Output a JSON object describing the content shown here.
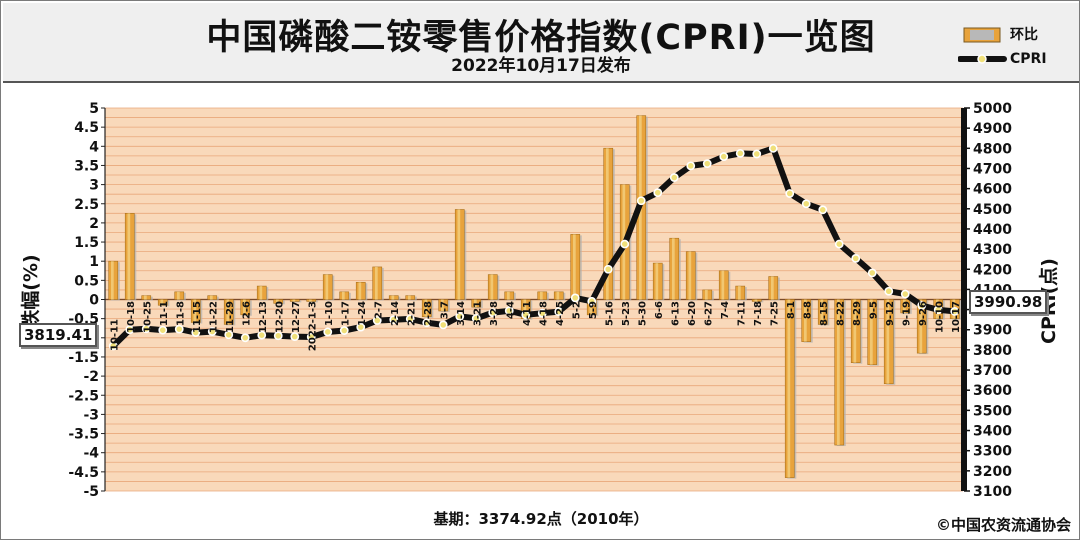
{
  "header": {
    "title": "中国磷酸二铵零售价格指数(CPRI)一览图",
    "subtitle": "2022年10月17日发布"
  },
  "legend": {
    "bar_label": "环比",
    "line_label": "CPRI"
  },
  "footer": {
    "base": "基期：3374.92点（2010年）",
    "copyright": "©中国农资流通协会"
  },
  "callouts": {
    "start_value": "3819.41",
    "end_value": "3990.98"
  },
  "colors": {
    "bar_fill": "#e8a33c",
    "bar_highlight": "#f3d080",
    "line": "#111111",
    "marker": "#f0e07a",
    "plot_bg": "#f9d9ba",
    "grid": "#e9a77a"
  },
  "chart_data": {
    "type": "bar",
    "categories": [
      "10-11",
      "10-18",
      "10-25",
      "11-1",
      "11-8",
      "11-15",
      "11-22",
      "11-29",
      "12-6",
      "12-13",
      "12-20",
      "12-27",
      "2022-1-3",
      "1-10",
      "1-17",
      "1-24",
      "2-7",
      "2-14",
      "2-21",
      "2-28",
      "3-7",
      "3-14",
      "3-21",
      "3-28",
      "4-4",
      "4-11",
      "4-18",
      "4-25",
      "5-2",
      "5-9",
      "5-16",
      "5-23",
      "5-30",
      "6-6",
      "6-13",
      "6-20",
      "6-27",
      "7-4",
      "7-11",
      "7-18",
      "7-25",
      "8-1",
      "8-8",
      "8-15",
      "8-22",
      "8-29",
      "9-5",
      "9-12",
      "9-19",
      "9-26",
      "10-10",
      "10-17"
    ],
    "series": [
      {
        "name": "环比",
        "axis": "left",
        "values": [
          1.0,
          2.25,
          0.1,
          -0.15,
          0.2,
          -0.6,
          0.1,
          -0.65,
          -0.4,
          0.35,
          -0.1,
          -0.05,
          -0.05,
          0.65,
          0.2,
          0.45,
          0.85,
          0.1,
          0.1,
          -0.45,
          -0.3,
          2.35,
          -0.2,
          0.65,
          0.2,
          -0.5,
          0.2,
          0.2,
          1.7,
          -0.4,
          3.95,
          3.0,
          4.8,
          0.95,
          1.6,
          1.25,
          0.25,
          0.75,
          0.35,
          -0.05,
          0.6,
          -4.65,
          -1.1,
          -0.65,
          -3.8,
          -1.65,
          -1.7,
          -2.2,
          -0.35,
          -1.4,
          -0.5,
          -0.5
        ]
      },
      {
        "name": "CPRI",
        "axis": "right",
        "values": [
          3819.41,
          3900,
          3905,
          3898,
          3903,
          3886,
          3891,
          3875,
          3860,
          3873,
          3870,
          3866,
          3864,
          3889,
          3896,
          3913,
          3946,
          3950,
          3954,
          3935,
          3924,
          3966,
          3956,
          3985,
          3994,
          3974,
          3982,
          3990,
          4058,
          4041,
          4200,
          4325,
          4540,
          4580,
          4655,
          4713,
          4724,
          4759,
          4775,
          4772,
          4800,
          4576,
          4525,
          4495,
          4325,
          4254,
          4182,
          4091,
          4077,
          4020,
          3999,
          3990.98
        ]
      }
    ],
    "ylim_left": [
      -5,
      5
    ],
    "yticks_left": [
      5,
      4.5,
      4,
      3.5,
      3,
      2.5,
      2,
      1.5,
      1,
      0.5,
      0,
      -0.5,
      -1,
      -1.5,
      -2,
      -2.5,
      -3,
      -3.5,
      -4,
      -4.5,
      -5
    ],
    "ylim_right": [
      3100,
      5000
    ],
    "yticks_right": [
      5000,
      4900,
      4800,
      4700,
      4600,
      4500,
      4400,
      4300,
      4200,
      4100,
      4000,
      3900,
      3800,
      3700,
      3600,
      3500,
      3400,
      3300,
      3200,
      3100
    ],
    "ylabel_left": "涨跌幅(%)",
    "ylabel_right": "CPRI(点)",
    "grid": true,
    "legend_position": "top-right"
  }
}
